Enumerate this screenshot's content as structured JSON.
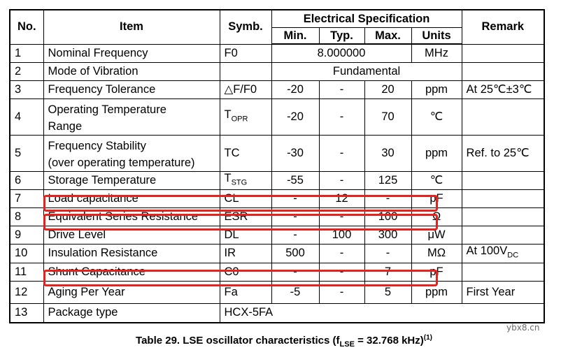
{
  "table": {
    "header": {
      "no": "No.",
      "item": "Item",
      "symb": "Symb.",
      "group": "Electrical Specification",
      "min": "Min.",
      "typ": "Typ.",
      "max": "Max.",
      "units": "Units",
      "remark": "Remark"
    },
    "rows": [
      {
        "no": "1",
        "item": "Nominal Frequency",
        "symb": "F0",
        "merged": "8.000000",
        "units": "MHz",
        "remark": ""
      },
      {
        "no": "2",
        "item": "Mode of Vibration",
        "symb": "",
        "merged_all": "Fundamental"
      },
      {
        "no": "3",
        "item": "Frequency Tolerance",
        "symb": "△F/F0",
        "min": "-20",
        "typ": "-",
        "max": "20",
        "units": "ppm",
        "remark": "At 25℃±3℃"
      },
      {
        "no": "4",
        "item_line1": "Operating Temperature",
        "item_line2": "Range",
        "symb_main": "T",
        "symb_sub": "OPR",
        "min": "-20",
        "typ": "-",
        "max": "70",
        "units": "℃",
        "remark": ""
      },
      {
        "no": "5",
        "item_line1": "Frequency Stability",
        "item_line2": "(over operating temperature)",
        "symb": "TC",
        "min": "-30",
        "typ": "-",
        "max": "30",
        "units": "ppm",
        "remark": "Ref. to 25℃"
      },
      {
        "no": "6",
        "item": "Storage Temperature",
        "symb_main": "T",
        "symb_sub": "STG",
        "min": "-55",
        "typ": "-",
        "max": "125",
        "units": "℃",
        "remark": ""
      },
      {
        "no": "7",
        "item": "Load capacitance",
        "symb": "CL",
        "min": "-",
        "typ": "12",
        "max": "-",
        "units": "pF",
        "remark": ""
      },
      {
        "no": "8",
        "item": "Equivalent Series Resistance",
        "symb": "ESR",
        "min": "-",
        "typ": "-",
        "max": "100",
        "units": "Ω",
        "remark": ""
      },
      {
        "no": "9",
        "item": "Drive Level",
        "symb": "DL",
        "min": "-",
        "typ": "100",
        "max": "300",
        "units": "μW",
        "remark": ""
      },
      {
        "no": "10",
        "item": "Insulation Resistance",
        "symb": "IR",
        "min": "500",
        "typ": "-",
        "max": "-",
        "units": "MΩ",
        "remark_main": "At 100V",
        "remark_sub": "DC"
      },
      {
        "no": "11",
        "item": "Shunt Capacitance",
        "symb": "C0",
        "min": "-",
        "typ": "-",
        "max": "7",
        "units": "pF",
        "remark": ""
      },
      {
        "no": "12",
        "item": "Aging Per Year",
        "symb": "Fa",
        "min": "-5",
        "typ": "-",
        "max": "5",
        "units": "ppm",
        "remark": "First Year"
      },
      {
        "no": "13",
        "item": "Package type",
        "symb": "HCX-5FA"
      }
    ]
  },
  "caption": {
    "prefix": "Table 29. LSE oscillator characteristics (f",
    "sub": "LSE",
    "suffix": " = 32.768 kHz)",
    "sup": "(1)"
  },
  "watermark": "ybx8.cn",
  "highlight_color": "#e8221a"
}
